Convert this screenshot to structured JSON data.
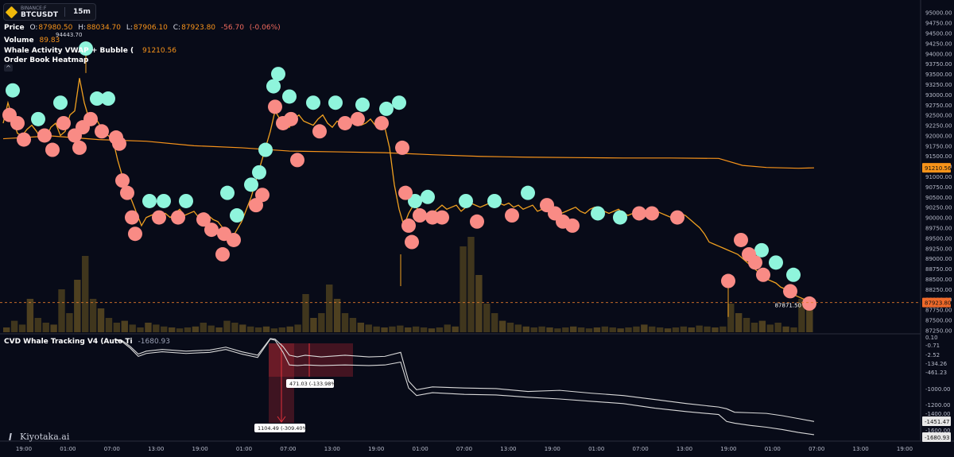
{
  "symbol": {
    "exchange": "BINANCE:F",
    "pair": "BTCUSDT",
    "timeframe": "15m"
  },
  "legend": {
    "price_label": "Price",
    "open_key": "O:",
    "open": "87980.50",
    "high_key": "H:",
    "high": "88034.70",
    "low_key": "L:",
    "low": "87906.10",
    "close_key": "C:",
    "close": "87923.80",
    "change": "-56.70",
    "change_pct": "(-0.06%)",
    "high_marker": "94443.70",
    "volume_label": "Volume",
    "volume_value": "89.83",
    "whale_label": "Whale Activity VWAP + Bubble (",
    "whale_value": "91210.56",
    "orderbook_label": "Order Book Heatmap",
    "collapse_glyph": "^"
  },
  "price_axis": {
    "ticks": [
      "95000.00",
      "94750.00",
      "94500.00",
      "94250.00",
      "94000.00",
      "93750.00",
      "93500.00",
      "93250.00",
      "93000.00",
      "92750.00",
      "92500.00",
      "92250.00",
      "92000.00",
      "91750.00",
      "91500.00",
      "91250.00",
      "91000.00",
      "90750.00",
      "90500.00",
      "90250.00",
      "90000.00",
      "89750.00",
      "89500.00",
      "89250.00",
      "89000.00",
      "88750.00",
      "88500.00",
      "88250.00",
      "88000.00",
      "87750.00",
      "87500.00",
      "87250.00"
    ],
    "vwap_badge": "91210.56",
    "price_badge": "87923.80",
    "last_label": "87871.50",
    "range": [
      87200,
      95150
    ]
  },
  "cvd": {
    "label": "CVD Whale Tracking V4 (Auto Ti",
    "header_value": "-1680.93",
    "axis_ticks": [
      "0.10",
      "-0.71",
      "-2.52",
      "-134.26",
      "-461.23",
      "-1000.00",
      "-1200.00",
      "-1400.00",
      "-1600.00"
    ],
    "badge_upper": "-1451.47",
    "badge_lower": "-1680.93",
    "measure_upper": "471.03 (-133.98%)",
    "measure_lower": "1104.49 (-309.40%)"
  },
  "time_axis": [
    "19:00",
    "01:00",
    "07:00",
    "13:00",
    "19:00",
    "01:00",
    "07:00",
    "13:00",
    "19:00",
    "01:00",
    "07:00",
    "13:00",
    "19:00",
    "01:00",
    "07:00",
    "13:00",
    "19:00",
    "01:00",
    "07:00",
    "13:00",
    "19:00"
  ],
  "brand": "Kiyotaka.ai",
  "colors": {
    "background": "#080b18",
    "vwap": "#f7931a",
    "buy_bubble": "#8ff5dc",
    "sell_bubble": "#f98b85",
    "cvd_line": "#d9d9d9",
    "measure": "#e0303a"
  },
  "chart_data": {
    "type": "line",
    "price_series": {
      "x": [
        0,
        6,
        12,
        18,
        24,
        30,
        36,
        42,
        48,
        54,
        60,
        66,
        72,
        78,
        84,
        90,
        96,
        102,
        108,
        114,
        120,
        126,
        132,
        138,
        144,
        150,
        156,
        162,
        168,
        174,
        180,
        186,
        192,
        198,
        204,
        210,
        216,
        222,
        228,
        234,
        240,
        246,
        252,
        258,
        264,
        270,
        276,
        282,
        288,
        294,
        300,
        306,
        312,
        318,
        324,
        330,
        336,
        342,
        348,
        354,
        360,
        366,
        372,
        378,
        384,
        390,
        396,
        402,
        408,
        414,
        420,
        426,
        432,
        438,
        444,
        450,
        456,
        462,
        468,
        474,
        480,
        486,
        492,
        498,
        504,
        510,
        516,
        522,
        528,
        534,
        540,
        546,
        552,
        558,
        564,
        570,
        576,
        582,
        588,
        594,
        600,
        606,
        612,
        618,
        624,
        630,
        636,
        642,
        648,
        654,
        660,
        666,
        672,
        678,
        684,
        690,
        696,
        702,
        708,
        714,
        720,
        726,
        732,
        738,
        744,
        750,
        756,
        762,
        768,
        774,
        780,
        786,
        792,
        798,
        804,
        810,
        816,
        822,
        828,
        834,
        840,
        846,
        852,
        858,
        864,
        870,
        876,
        882,
        888,
        894,
        900,
        906,
        912,
        918,
        924,
        930,
        936,
        942,
        948,
        954,
        960,
        966,
        972,
        978,
        984,
        990,
        996,
        1002,
        1008,
        1014,
        1020
      ],
      "values": [
        92300,
        92800,
        92400,
        92050,
        92000,
        92150,
        92250,
        92100,
        91900,
        91950,
        92200,
        92300,
        92000,
        92100,
        92500,
        92600,
        93400,
        92800,
        92400,
        92500,
        92300,
        92100,
        92000,
        91900,
        91400,
        91000,
        90700,
        90400,
        90100,
        89800,
        90000,
        90050,
        90100,
        90050,
        90100,
        90000,
        90100,
        90200,
        90050,
        90100,
        90150,
        90000,
        90100,
        90050,
        89950,
        89900,
        89750,
        89600,
        89500,
        89700,
        89900,
        90200,
        90500,
        90900,
        91300,
        91700,
        92100,
        92600,
        92400,
        92300,
        92200,
        92400,
        92500,
        92350,
        92300,
        92250,
        92400,
        92500,
        92300,
        92200,
        92350,
        92300,
        92250,
        92300,
        92350,
        92250,
        92300,
        92400,
        92250,
        92300,
        92200,
        91700,
        90800,
        90200,
        89800,
        90100,
        90300,
        90200,
        90150,
        90000,
        90100,
        90200,
        90300,
        90200,
        90250,
        90300,
        90150,
        90250,
        90350,
        90300,
        90250,
        90300,
        90350,
        90400,
        90350,
        90300,
        90350,
        90250,
        90300,
        90200,
        90250,
        90300,
        90150,
        90200,
        90250,
        90300,
        90200,
        90100,
        90150,
        90200,
        90250,
        90150,
        90100,
        90200,
        90250,
        90200,
        90150,
        90100,
        90150,
        90200,
        90100,
        90050,
        90100,
        90150,
        90100,
        90050,
        90100,
        90150,
        90100,
        90050,
        90000,
        90050,
        90100,
        90050,
        89950,
        89850,
        89750,
        89600,
        89400,
        89350,
        89300,
        89250,
        89200,
        89150,
        89100,
        89000,
        88900,
        88800,
        88700,
        88600,
        88500,
        88450,
        88400,
        88300,
        88250,
        88150,
        88100,
        88050,
        88000,
        87950,
        87900
      ]
    },
    "vwap_series": {
      "x": [
        0,
        60,
        120,
        180,
        240,
        300,
        360,
        420,
        480,
        540,
        600,
        660,
        720,
        780,
        840,
        900,
        930,
        960,
        1000,
        1020
      ],
      "values": [
        91920,
        91990,
        91900,
        91860,
        91750,
        91700,
        91620,
        91600,
        91580,
        91530,
        91490,
        91470,
        91460,
        91450,
        91450,
        91440,
        91270,
        91220,
        91200,
        91210
      ]
    },
    "buy_bubbles": [
      {
        "x": 12,
        "y": 93100
      },
      {
        "x": 44,
        "y": 92400
      },
      {
        "x": 72,
        "y": 92800
      },
      {
        "x": 104,
        "y": 94120
      },
      {
        "x": 118,
        "y": 92900
      },
      {
        "x": 132,
        "y": 92900
      },
      {
        "x": 184,
        "y": 90400
      },
      {
        "x": 202,
        "y": 90400
      },
      {
        "x": 230,
        "y": 90400
      },
      {
        "x": 282,
        "y": 90600
      },
      {
        "x": 294,
        "y": 90050
      },
      {
        "x": 312,
        "y": 90800
      },
      {
        "x": 322,
        "y": 91100
      },
      {
        "x": 330,
        "y": 91650
      },
      {
        "x": 340,
        "y": 93200
      },
      {
        "x": 346,
        "y": 93500
      },
      {
        "x": 360,
        "y": 92950
      },
      {
        "x": 390,
        "y": 92800
      },
      {
        "x": 418,
        "y": 92800
      },
      {
        "x": 452,
        "y": 92750
      },
      {
        "x": 482,
        "y": 92650
      },
      {
        "x": 498,
        "y": 92800
      },
      {
        "x": 518,
        "y": 90400
      },
      {
        "x": 534,
        "y": 90500
      },
      {
        "x": 582,
        "y": 90400
      },
      {
        "x": 618,
        "y": 90400
      },
      {
        "x": 660,
        "y": 90600
      },
      {
        "x": 748,
        "y": 90100
      },
      {
        "x": 776,
        "y": 90000
      },
      {
        "x": 954,
        "y": 89200
      },
      {
        "x": 972,
        "y": 88900
      },
      {
        "x": 994,
        "y": 88600
      }
    ],
    "sell_bubbles": [
      {
        "x": 8,
        "y": 92500
      },
      {
        "x": 18,
        "y": 92300
      },
      {
        "x": 26,
        "y": 91900
      },
      {
        "x": 52,
        "y": 92000
      },
      {
        "x": 62,
        "y": 91650
      },
      {
        "x": 76,
        "y": 92300
      },
      {
        "x": 90,
        "y": 92000
      },
      {
        "x": 96,
        "y": 91700
      },
      {
        "x": 100,
        "y": 92200
      },
      {
        "x": 110,
        "y": 92400
      },
      {
        "x": 124,
        "y": 92100
      },
      {
        "x": 142,
        "y": 91950
      },
      {
        "x": 146,
        "y": 91800
      },
      {
        "x": 150,
        "y": 90900
      },
      {
        "x": 156,
        "y": 90600
      },
      {
        "x": 162,
        "y": 90000
      },
      {
        "x": 166,
        "y": 89600
      },
      {
        "x": 196,
        "y": 90000
      },
      {
        "x": 220,
        "y": 90000
      },
      {
        "x": 252,
        "y": 89950
      },
      {
        "x": 262,
        "y": 89700
      },
      {
        "x": 278,
        "y": 89600
      },
      {
        "x": 276,
        "y": 89100
      },
      {
        "x": 290,
        "y": 89450
      },
      {
        "x": 318,
        "y": 90300
      },
      {
        "x": 326,
        "y": 90550
      },
      {
        "x": 342,
        "y": 92700
      },
      {
        "x": 352,
        "y": 92300
      },
      {
        "x": 362,
        "y": 92400
      },
      {
        "x": 370,
        "y": 91400
      },
      {
        "x": 398,
        "y": 92100
      },
      {
        "x": 430,
        "y": 92300
      },
      {
        "x": 446,
        "y": 92400
      },
      {
        "x": 476,
        "y": 92300
      },
      {
        "x": 502,
        "y": 91700
      },
      {
        "x": 506,
        "y": 90600
      },
      {
        "x": 510,
        "y": 89800
      },
      {
        "x": 514,
        "y": 89400
      },
      {
        "x": 524,
        "y": 90050
      },
      {
        "x": 540,
        "y": 90000
      },
      {
        "x": 552,
        "y": 90000
      },
      {
        "x": 596,
        "y": 89900
      },
      {
        "x": 640,
        "y": 90050
      },
      {
        "x": 684,
        "y": 90300
      },
      {
        "x": 694,
        "y": 90100
      },
      {
        "x": 704,
        "y": 89900
      },
      {
        "x": 716,
        "y": 89800
      },
      {
        "x": 800,
        "y": 90100
      },
      {
        "x": 816,
        "y": 90100
      },
      {
        "x": 848,
        "y": 90000
      },
      {
        "x": 912,
        "y": 88450
      },
      {
        "x": 928,
        "y": 89450
      },
      {
        "x": 938,
        "y": 89100
      },
      {
        "x": 946,
        "y": 88900
      },
      {
        "x": 956,
        "y": 88600
      },
      {
        "x": 990,
        "y": 88200
      },
      {
        "x": 1014,
        "y": 87900
      }
    ],
    "volume_series": {
      "note_values": "relative volume 0-1",
      "values": [
        0.05,
        0.12,
        0.08,
        0.35,
        0.15,
        0.1,
        0.08,
        0.45,
        0.2,
        0.55,
        0.8,
        0.35,
        0.25,
        0.15,
        0.1,
        0.12,
        0.08,
        0.05,
        0.1,
        0.08,
        0.06,
        0.05,
        0.04,
        0.05,
        0.06,
        0.1,
        0.07,
        0.05,
        0.12,
        0.1,
        0.08,
        0.06,
        0.05,
        0.06,
        0.04,
        0.05,
        0.06,
        0.08,
        0.4,
        0.15,
        0.2,
        0.5,
        0.35,
        0.2,
        0.15,
        0.1,
        0.08,
        0.06,
        0.05,
        0.06,
        0.07,
        0.05,
        0.06,
        0.05,
        0.04,
        0.05,
        0.08,
        0.06,
        0.9,
        1.0,
        0.6,
        0.3,
        0.2,
        0.12,
        0.1,
        0.08,
        0.06,
        0.05,
        0.06,
        0.05,
        0.04,
        0.05,
        0.06,
        0.05,
        0.04,
        0.05,
        0.06,
        0.05,
        0.04,
        0.05,
        0.06,
        0.08,
        0.06,
        0.05,
        0.04,
        0.05,
        0.06,
        0.05,
        0.07,
        0.06,
        0.05,
        0.06,
        0.3,
        0.2,
        0.15,
        0.1,
        0.12,
        0.08,
        0.1,
        0.06,
        0.05,
        0.35,
        0.3
      ]
    },
    "cvd_series": {
      "x": [
        140,
        150,
        160,
        170,
        180,
        200,
        230,
        260,
        280,
        300,
        320,
        336,
        342,
        352,
        360,
        370,
        380,
        400,
        430,
        460,
        480,
        500,
        510,
        520,
        540,
        580,
        620,
        660,
        700,
        740,
        780,
        820,
        860,
        900,
        910,
        920,
        940,
        960,
        980,
        1000,
        1020
      ],
      "upper": [
        -20,
        -50,
        -150,
        -280,
        -230,
        -200,
        -230,
        -210,
        -160,
        -240,
        -300,
        -10,
        -20,
        -150,
        -300,
        -330,
        -300,
        -330,
        -300,
        -330,
        -320,
        -250,
        -750,
        -900,
        -850,
        -870,
        -880,
        -930,
        -910,
        -960,
        -1000,
        -1070,
        -1140,
        -1200,
        -1230,
        -1290,
        -1300,
        -1310,
        -1350,
        -1400,
        -1451
      ],
      "lower": [
        -30,
        -70,
        -180,
        -320,
        -270,
        -240,
        -270,
        -250,
        -200,
        -280,
        -340,
        -20,
        -40,
        -250,
        -470,
        -480,
        -470,
        -480,
        -470,
        -480,
        -470,
        -420,
        -870,
        -1000,
        -950,
        -980,
        -990,
        -1030,
        -1060,
        -1100,
        -1140,
        -1220,
        -1280,
        -1330,
        -1450,
        -1480,
        -1520,
        -1550,
        -1590,
        -1640,
        -1680
      ]
    }
  }
}
